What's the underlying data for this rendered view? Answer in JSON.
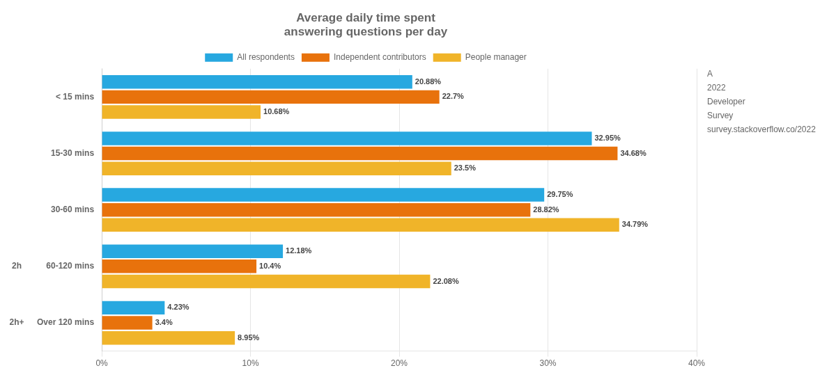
{
  "chart_data": {
    "type": "bar",
    "orientation": "horizontal",
    "title": [
      "Average daily time spent",
      "answering questions per day"
    ],
    "categories": [
      "< 15 mins",
      "15-30 mins",
      "30-60 mins",
      "60-120 mins",
      "Over 120 mins"
    ],
    "series": [
      {
        "name": "All respondents",
        "color": "#27a8e0",
        "values": [
          20.88,
          32.95,
          29.75,
          12.18,
          4.23
        ],
        "value_labels": [
          "20.88%",
          "32.95%",
          "29.75%",
          "12.18%",
          "4.23%"
        ]
      },
      {
        "name": "Independent contributors",
        "color": "#e8720c",
        "values": [
          22.7,
          34.68,
          28.82,
          10.4,
          3.4
        ],
        "value_labels": [
          "22.7%",
          "34.68%",
          "28.82%",
          "10.4%",
          "3.4%"
        ]
      },
      {
        "name": "People manager",
        "color": "#f0b429",
        "values": [
          10.68,
          23.5,
          34.79,
          22.08,
          8.95
        ],
        "value_labels": [
          "10.68%",
          "23.5%",
          "34.79%",
          "22.08%",
          "8.95%"
        ]
      }
    ],
    "xlim": [
      0,
      40
    ],
    "xticks": [
      {
        "value": 0,
        "label": "0%"
      },
      {
        "value": 10,
        "label": "10%"
      },
      {
        "value": 20,
        "label": "20%"
      },
      {
        "value": 30,
        "label": "30%"
      },
      {
        "value": 40,
        "label": "40%"
      }
    ],
    "grid": true,
    "legend": "top",
    "data_labels": true,
    "annotations": [
      {
        "text": "A"
      },
      {
        "text": "2022"
      },
      {
        "text": "Developer"
      },
      {
        "text": "Survey"
      },
      {
        "text": "survey.stackoverflow.co/2022"
      },
      {
        "text": "2h",
        "category": "60-120 mins"
      },
      {
        "text": "2h+",
        "category": "Over 120 mins"
      }
    ]
  }
}
